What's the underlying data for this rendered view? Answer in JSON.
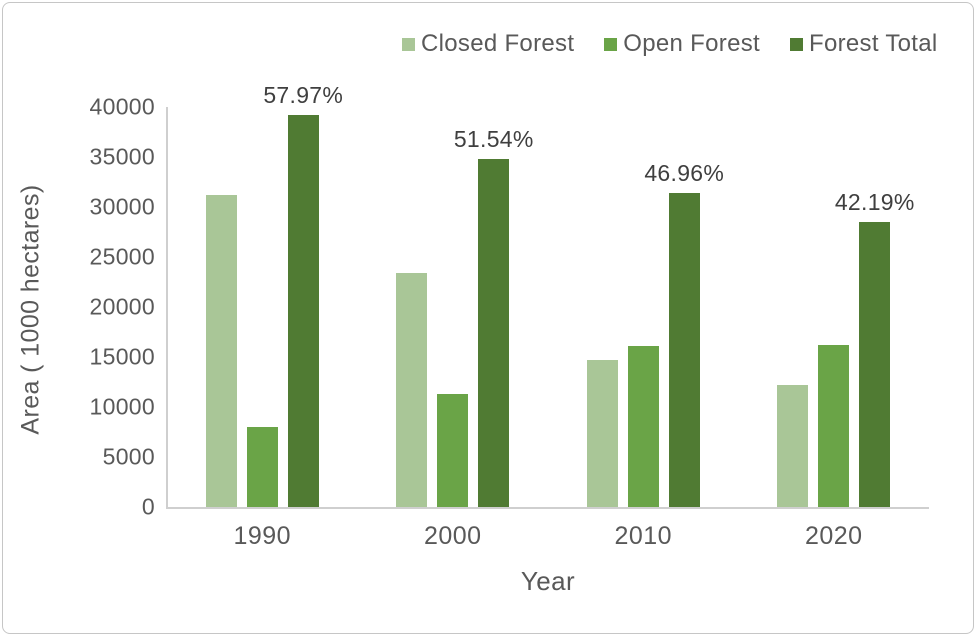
{
  "chart_data": {
    "type": "bar",
    "title": "",
    "xlabel": "Year",
    "ylabel": "Area ( 1000 hectares)",
    "categories": [
      "1990",
      "2000",
      "2010",
      "2020"
    ],
    "series": [
      {
        "name": "Closed Forest",
        "color": "#a9c697",
        "values": [
          31200,
          23400,
          14700,
          12200
        ]
      },
      {
        "name": "Open Forest",
        "color": "#6aa447",
        "values": [
          8000,
          11300,
          16100,
          16200
        ]
      },
      {
        "name": "Forest Total",
        "color": "#507b33",
        "values": [
          39200,
          34800,
          31400,
          28500
        ]
      }
    ],
    "data_labels": {
      "series": "Forest Total",
      "values": [
        "57.97%",
        "51.54%",
        "46.96%",
        "42.19%"
      ]
    },
    "y_ticks": [
      0,
      5000,
      10000,
      15000,
      20000,
      25000,
      30000,
      35000,
      40000
    ],
    "ylim": [
      0,
      40000
    ],
    "grid": false,
    "legend_position": "top",
    "axis_line_color": "#cfcfcf",
    "text_color": "#595959",
    "data_label_color": "#3f3f3f",
    "background_color": "#ffffff"
  }
}
